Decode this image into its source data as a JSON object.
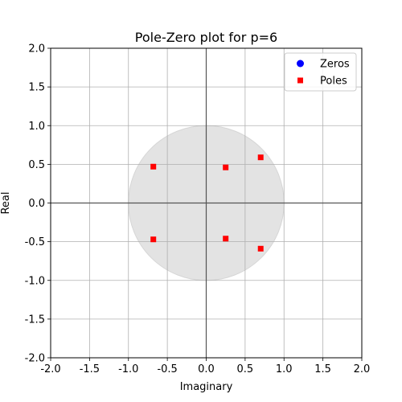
{
  "chart_data": {
    "type": "scatter",
    "title": "Pole-Zero plot for p=6",
    "xlabel": "Imaginary",
    "ylabel": "Real",
    "xlim": [
      -2.0,
      2.0
    ],
    "ylim": [
      -2.0,
      2.0
    ],
    "xticks": [
      "-2.0",
      "-1.5",
      "-1.0",
      "-0.5",
      "0.0",
      "0.5",
      "1.0",
      "1.5",
      "2.0"
    ],
    "yticks": [
      "-2.0",
      "-1.5",
      "-1.0",
      "-0.5",
      "0.0",
      "0.5",
      "1.0",
      "1.5",
      "2.0"
    ],
    "grid": true,
    "legend_position": "top-right",
    "unit_circle": {
      "radius": 1.0,
      "color": "#e3e3e3"
    },
    "axis_lines_at": [
      0,
      0
    ],
    "series": [
      {
        "name": "Zeros",
        "marker": "circle",
        "color": "#0000ff",
        "points": []
      },
      {
        "name": "Poles",
        "marker": "square",
        "color": "#ff0000",
        "points": [
          {
            "x": -0.68,
            "y": 0.47
          },
          {
            "x": -0.68,
            "y": -0.47
          },
          {
            "x": 0.25,
            "y": 0.46
          },
          {
            "x": 0.25,
            "y": -0.46
          },
          {
            "x": 0.7,
            "y": 0.59
          },
          {
            "x": 0.7,
            "y": -0.59
          }
        ]
      }
    ]
  }
}
